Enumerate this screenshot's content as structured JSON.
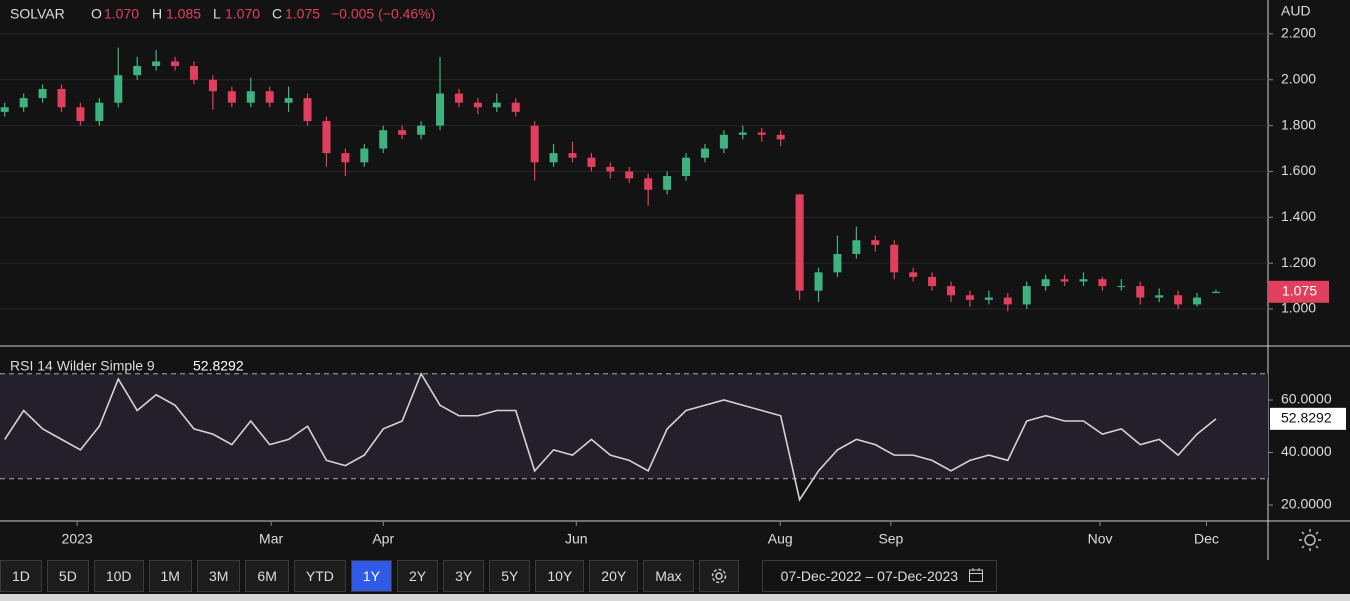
{
  "header": {
    "symbol": "SOLVAR",
    "open_label": "O",
    "open": "1.070",
    "high_label": "H",
    "high": "1.085",
    "low_label": "L",
    "low": "1.070",
    "close_label": "C",
    "close": "1.075",
    "change": "−0.005 (−0.46%)",
    "currency": "AUD",
    "indicator": "RSI 14 Wilder Simple 9",
    "indicator_value": "52.8292"
  },
  "toolbar": {
    "buttons": [
      "1D",
      "5D",
      "10D",
      "1M",
      "3M",
      "6M",
      "YTD",
      "1Y",
      "2Y",
      "3Y",
      "5Y",
      "10Y",
      "20Y",
      "Max"
    ],
    "active": "1Y",
    "date_range": "07-Dec-2022 – 07-Dec-2023"
  },
  "chart_data": [
    {
      "type": "candlestick",
      "xlim": [
        0,
        268
      ],
      "ylim": [
        0.843,
        2.348
      ],
      "yticks": [
        {
          "value": 1.0,
          "label": "1.000"
        },
        {
          "value": 1.2,
          "label": "1.200"
        },
        {
          "value": 1.4,
          "label": "1.400"
        },
        {
          "value": 1.6,
          "label": "1.600"
        },
        {
          "value": 1.8,
          "label": "1.800"
        },
        {
          "value": 2.0,
          "label": "2.000"
        },
        {
          "value": 2.2,
          "label": "2.200"
        }
      ],
      "grid": true,
      "up_color": "#3fb37f",
      "down_color": "#e0405e",
      "series": [
        {
          "x": [
            1,
            5,
            9,
            13,
            17,
            21,
            25,
            29,
            33,
            37,
            41,
            45,
            49,
            53,
            57,
            61,
            65,
            69,
            73,
            77,
            81,
            85,
            89,
            93,
            97,
            101,
            105,
            109,
            113,
            117,
            121,
            125,
            129,
            133,
            137,
            141,
            145,
            149,
            153,
            157,
            161,
            165,
            169,
            173,
            177,
            181,
            185,
            189,
            193,
            197,
            201,
            205,
            209,
            213,
            217,
            221,
            225,
            229,
            233,
            237,
            241,
            245,
            249,
            253,
            257
          ],
          "open": [
            1.86,
            1.88,
            1.92,
            1.96,
            1.88,
            1.82,
            1.9,
            2.02,
            2.06,
            2.08,
            2.06,
            2.0,
            1.95,
            1.9,
            1.95,
            1.9,
            1.92,
            1.82,
            1.68,
            1.64,
            1.7,
            1.78,
            1.76,
            1.8,
            1.94,
            1.9,
            1.88,
            1.9,
            1.8,
            1.64,
            1.68,
            1.66,
            1.62,
            1.6,
            1.57,
            1.52,
            1.58,
            1.66,
            1.7,
            1.76,
            1.77,
            1.76,
            1.5,
            1.08,
            1.16,
            1.24,
            1.3,
            1.28,
            1.16,
            1.14,
            1.1,
            1.06,
            1.04,
            1.05,
            1.02,
            1.1,
            1.13,
            1.12,
            1.13,
            1.1,
            1.1,
            1.05,
            1.06,
            1.02,
            1.07
          ],
          "high": [
            1.9,
            1.94,
            1.98,
            1.98,
            1.9,
            1.92,
            2.14,
            2.1,
            2.13,
            2.1,
            2.08,
            2.02,
            1.97,
            2.01,
            1.97,
            1.97,
            1.94,
            1.84,
            1.7,
            1.72,
            1.8,
            1.8,
            1.82,
            2.1,
            1.96,
            1.92,
            1.94,
            1.92,
            1.82,
            1.72,
            1.73,
            1.68,
            1.64,
            1.62,
            1.59,
            1.6,
            1.68,
            1.72,
            1.78,
            1.8,
            1.79,
            1.78,
            1.5,
            1.18,
            1.32,
            1.36,
            1.32,
            1.3,
            1.18,
            1.16,
            1.12,
            1.08,
            1.08,
            1.07,
            1.12,
            1.15,
            1.15,
            1.16,
            1.14,
            1.13,
            1.12,
            1.09,
            1.08,
            1.07,
            1.085
          ],
          "low": [
            1.84,
            1.86,
            1.9,
            1.86,
            1.8,
            1.8,
            1.88,
            2.0,
            2.04,
            2.04,
            1.98,
            1.87,
            1.88,
            1.88,
            1.88,
            1.86,
            1.8,
            1.62,
            1.58,
            1.62,
            1.68,
            1.74,
            1.74,
            1.78,
            1.88,
            1.85,
            1.86,
            1.84,
            1.56,
            1.62,
            1.64,
            1.6,
            1.57,
            1.55,
            1.45,
            1.5,
            1.56,
            1.64,
            1.68,
            1.74,
            1.73,
            1.71,
            1.04,
            1.03,
            1.14,
            1.22,
            1.25,
            1.13,
            1.12,
            1.08,
            1.03,
            1.01,
            1.02,
            0.99,
            1.0,
            1.08,
            1.1,
            1.1,
            1.08,
            1.08,
            1.02,
            1.03,
            1.0,
            1.01,
            1.07
          ],
          "close": [
            1.88,
            1.92,
            1.96,
            1.88,
            1.82,
            1.9,
            2.02,
            2.06,
            2.08,
            2.06,
            2.0,
            1.95,
            1.9,
            1.95,
            1.9,
            1.92,
            1.82,
            1.68,
            1.64,
            1.7,
            1.78,
            1.76,
            1.8,
            1.94,
            1.9,
            1.88,
            1.9,
            1.86,
            1.64,
            1.68,
            1.66,
            1.62,
            1.6,
            1.57,
            1.52,
            1.58,
            1.66,
            1.7,
            1.76,
            1.77,
            1.76,
            1.74,
            1.08,
            1.16,
            1.24,
            1.3,
            1.28,
            1.16,
            1.14,
            1.1,
            1.06,
            1.04,
            1.05,
            1.02,
            1.1,
            1.13,
            1.12,
            1.13,
            1.1,
            1.1,
            1.05,
            1.06,
            1.02,
            1.05,
            1.075
          ]
        }
      ]
    },
    {
      "type": "line",
      "xlim": [
        0,
        268
      ],
      "ylim": [
        13.9,
        80.2
      ],
      "yticks": [
        {
          "value": 20,
          "label": "20.0000"
        },
        {
          "value": 40,
          "label": "40.0000"
        },
        {
          "value": 60,
          "label": "60.0000"
        }
      ],
      "bands": [
        30,
        70
      ],
      "xticks": [
        {
          "value": 16.3,
          "label": "2023"
        },
        {
          "value": 57.3,
          "label": "Mar"
        },
        {
          "value": 81,
          "label": "Apr"
        },
        {
          "value": 121.8,
          "label": "Jun"
        },
        {
          "value": 164.9,
          "label": "Aug"
        },
        {
          "value": 188.3,
          "label": "Sep"
        },
        {
          "value": 232.5,
          "label": "Nov"
        },
        {
          "value": 255,
          "label": "Dec"
        }
      ],
      "series": [
        {
          "color": "#d4d4d4",
          "x": [
            1,
            5,
            9,
            13,
            17,
            21,
            25,
            29,
            33,
            37,
            41,
            45,
            49,
            53,
            57,
            61,
            65,
            69,
            73,
            77,
            81,
            85,
            89,
            93,
            97,
            101,
            105,
            109,
            113,
            117,
            121,
            125,
            129,
            133,
            137,
            141,
            145,
            149,
            153,
            157,
            161,
            165,
            169,
            173,
            177,
            181,
            185,
            189,
            193,
            197,
            201,
            205,
            209,
            213,
            217,
            221,
            225,
            229,
            233,
            237,
            241,
            245,
            249,
            253,
            257
          ],
          "values": [
            45,
            56,
            49,
            45,
            41,
            50,
            68,
            56,
            62,
            58,
            49,
            47,
            43,
            52,
            43,
            45,
            50,
            37,
            35,
            39,
            49,
            52,
            70,
            58,
            54,
            54,
            56,
            56,
            33,
            41,
            39,
            45,
            39,
            37,
            33,
            49,
            56,
            58,
            60,
            58,
            56,
            54,
            22,
            33,
            41,
            45,
            43,
            39,
            39,
            37,
            33,
            37,
            39,
            37,
            52,
            54,
            52,
            52,
            47,
            49,
            43,
            45,
            39,
            47,
            52.8292
          ]
        }
      ]
    }
  ]
}
